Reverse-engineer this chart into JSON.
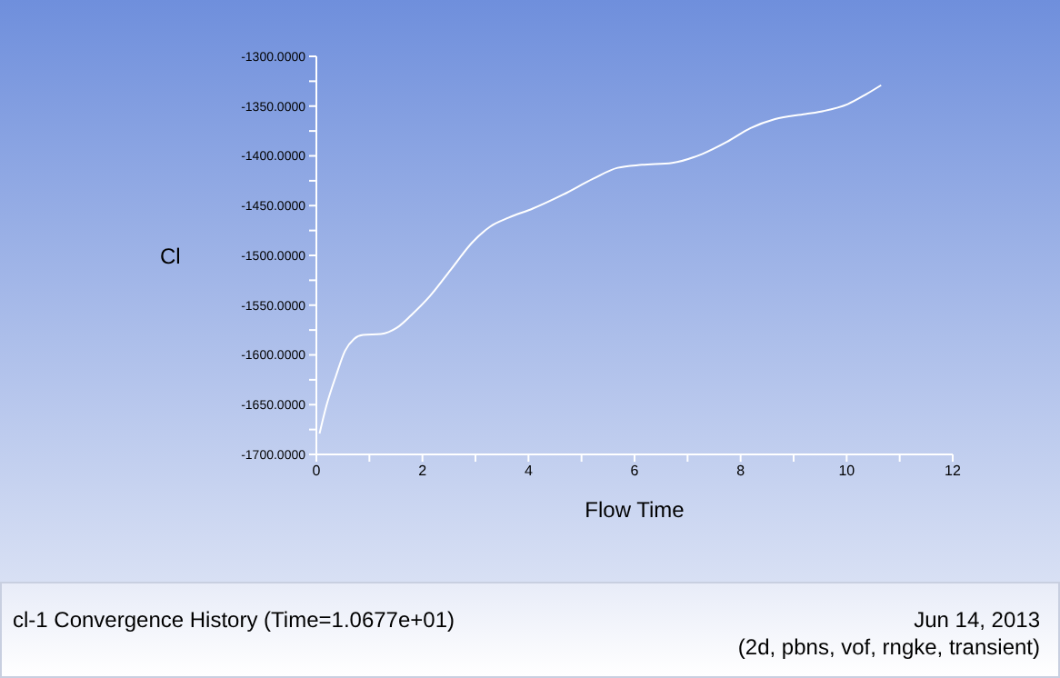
{
  "chart_data": {
    "type": "line",
    "title": "cl-1 Convergence History  (Time=1.0677e+01)",
    "xlabel": "Flow Time",
    "ylabel": "Cl",
    "annotations": [
      "Jun 14, 2013",
      "(2d, pbns, vof, rngke, transient)"
    ],
    "x": [
      0.06,
      0.19,
      0.37,
      0.54,
      0.71,
      0.88,
      1.22,
      1.51,
      1.79,
      2.14,
      2.54,
      2.94,
      3.28,
      3.63,
      4.08,
      4.65,
      5.22,
      5.68,
      6.14,
      6.71,
      7.28,
      7.74,
      8.19,
      8.65,
      9.22,
      9.56,
      10.02,
      10.37,
      10.65
    ],
    "series": [
      {
        "color": "#ffffff",
        "values": [
          -1679,
          -1651,
          -1621,
          -1596,
          -1584,
          -1580,
          -1579,
          -1573,
          -1560,
          -1541,
          -1514,
          -1487,
          -1471,
          -1462,
          -1453,
          -1439,
          -1423,
          -1412,
          -1409,
          -1407,
          -1398,
          -1386,
          -1372,
          -1363,
          -1358,
          -1355,
          -1348,
          -1338,
          -1329
        ]
      }
    ],
    "xlim": [
      0,
      12
    ],
    "xticks": [
      0,
      {
        "value": 1,
        "label": null
      },
      2,
      {
        "value": 3,
        "label": null
      },
      4,
      {
        "value": 5,
        "label": null
      },
      6,
      {
        "value": 7,
        "label": null
      },
      8,
      {
        "value": 9,
        "label": null
      },
      10,
      {
        "value": 11,
        "label": null
      },
      12
    ],
    "ylim": [
      -1700,
      -1300
    ],
    "yticks": [
      {
        "value": -1700,
        "label": "-1700.0000"
      },
      {
        "value": -1675,
        "label": null
      },
      {
        "value": -1650,
        "label": "-1650.0000"
      },
      {
        "value": -1625,
        "label": null
      },
      {
        "value": -1600,
        "label": "-1600.0000"
      },
      {
        "value": -1575,
        "label": null
      },
      {
        "value": -1550,
        "label": "-1550.0000"
      },
      {
        "value": -1525,
        "label": null
      },
      {
        "value": -1500,
        "label": "-1500.0000"
      },
      {
        "value": -1475,
        "label": null
      },
      {
        "value": -1450,
        "label": "-1450.0000"
      },
      {
        "value": -1425,
        "label": null
      },
      {
        "value": -1400,
        "label": "-1400.0000"
      },
      {
        "value": -1375,
        "label": null
      },
      {
        "value": -1350,
        "label": "-1350.0000"
      },
      {
        "value": -1325,
        "label": null
      },
      {
        "value": -1300,
        "label": "-1300.0000"
      }
    ],
    "grid": false,
    "legend": false
  }
}
